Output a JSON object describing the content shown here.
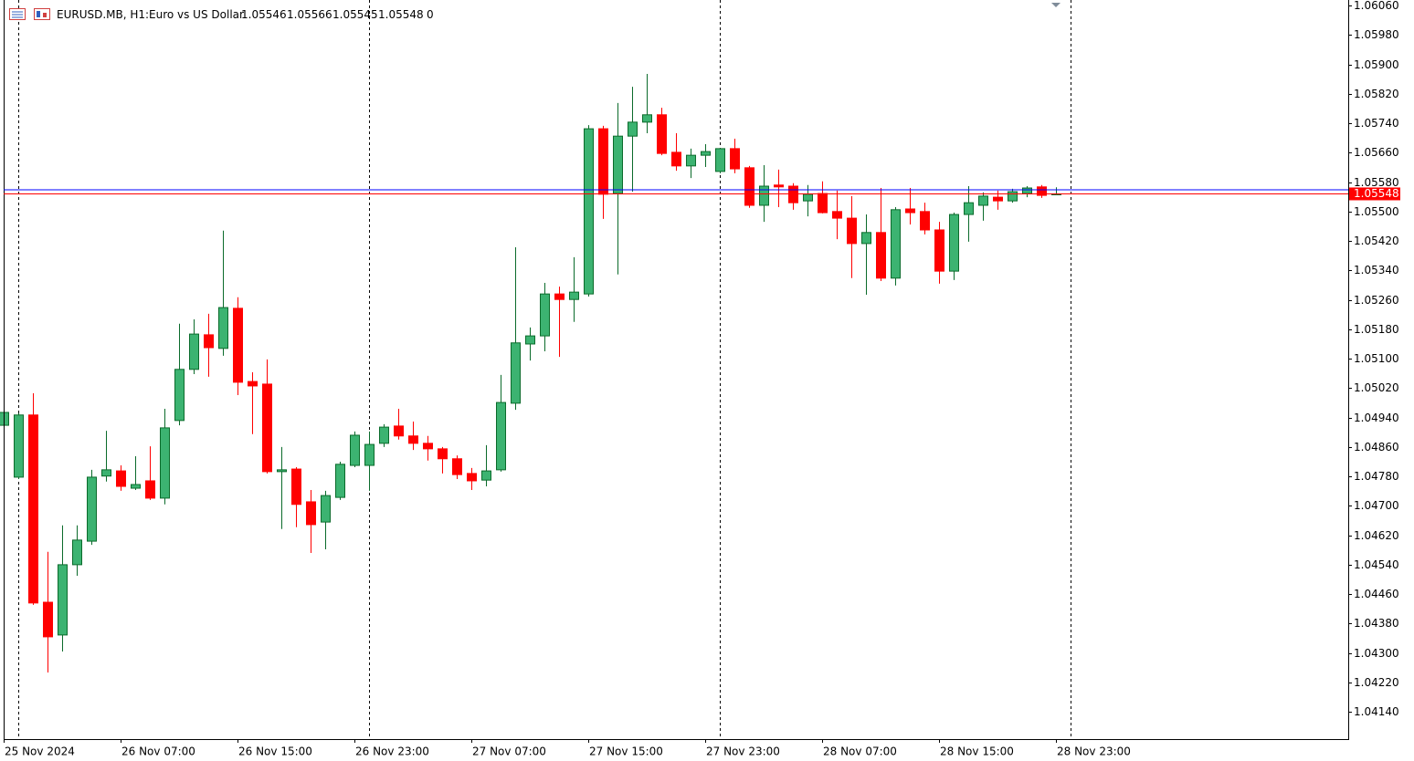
{
  "header": {
    "symbol": "EURUSD.MB, H1:",
    "description": "Euro vs US Dollar",
    "tail": 0
  },
  "chart_data": {
    "type": "candlestick",
    "categories": [
      "25 Nov 2024",
      null,
      null,
      null,
      null,
      null,
      null,
      null,
      "26 Nov 07:00",
      null,
      null,
      null,
      null,
      null,
      null,
      null,
      "26 Nov 15:00",
      null,
      null,
      null,
      null,
      null,
      null,
      null,
      "26 Nov 23:00",
      null,
      null,
      null,
      null,
      null,
      null,
      null,
      "27 Nov 07:00",
      null,
      null,
      null,
      null,
      null,
      null,
      null,
      "27 Nov 15:00",
      null,
      null,
      null,
      null,
      null,
      null,
      null,
      "27 Nov 23:00",
      null,
      null,
      null,
      null,
      null,
      null,
      null,
      "28 Nov 07:00",
      null,
      null,
      null,
      null,
      null,
      null,
      null,
      "28 Nov 15:00",
      null,
      null,
      null,
      null,
      null,
      null,
      null,
      "28 Nov 23:00"
    ],
    "open": [
      1.04919,
      1.04778,
      1.04947,
      1.04438,
      1.04349,
      1.0454,
      1.04604,
      1.04781,
      1.04795,
      1.04748,
      1.04768,
      1.04721,
      1.04932,
      1.05071,
      1.05165,
      1.05128,
      1.05237,
      1.05038,
      1.05031,
      1.04793,
      1.048,
      1.04711,
      1.04656,
      1.04723,
      1.0481,
      1.0481,
      1.0487,
      1.04917,
      1.0489,
      1.0487,
      1.04855,
      1.04828,
      1.04788,
      1.0477,
      1.04798,
      1.04979,
      1.0514,
      1.05162,
      1.05276,
      1.05261,
      1.05276,
      1.05725,
      1.05549,
      1.05705,
      1.05743,
      1.05763,
      1.05661,
      1.05624,
      1.05653,
      1.05609,
      1.05671,
      1.05619,
      1.05517,
      1.05572,
      1.05569,
      1.05529,
      1.05549,
      1.055,
      1.05482,
      1.05413,
      1.05443,
      1.05319,
      1.05507,
      1.055,
      1.0545,
      1.05338,
      1.05492,
      1.05517,
      1.05539,
      1.05529,
      1.05549,
      1.05567,
      1.05546
    ],
    "high": [
      1.04959,
      1.04952,
      1.05006,
      1.04575,
      1.04647,
      1.04647,
      1.04798,
      1.04904,
      1.0481,
      1.04835,
      1.04862,
      1.04964,
      1.05195,
      1.05207,
      1.05222,
      1.05448,
      1.05267,
      1.05063,
      1.05098,
      1.0486,
      1.04805,
      1.04743,
      1.04741,
      1.0482,
      1.04902,
      1.04902,
      1.04922,
      1.04964,
      1.04929,
      1.0489,
      1.0486,
      1.04837,
      1.04803,
      1.04865,
      1.05056,
      1.05403,
      1.05185,
      1.05306,
      1.05296,
      1.05376,
      1.05735,
      1.05733,
      1.05795,
      1.05839,
      1.05874,
      1.05782,
      1.05713,
      1.05671,
      1.05683,
      1.05673,
      1.05698,
      1.05624,
      1.05626,
      1.05614,
      1.05577,
      1.05572,
      1.05582,
      1.05557,
      1.05542,
      1.05492,
      1.05564,
      1.05512,
      1.05564,
      1.05524,
      1.05472,
      1.05497,
      1.05569,
      1.05552,
      1.05557,
      1.05562,
      1.05569,
      1.05572,
      1.05566
    ],
    "low": [
      1.04914,
      1.04773,
      1.04431,
      1.04247,
      1.04304,
      1.0451,
      1.04594,
      1.04766,
      1.04741,
      1.04743,
      1.04716,
      1.04704,
      1.04919,
      1.05058,
      1.05051,
      1.05108,
      1.05001,
      1.04895,
      1.04788,
      1.04637,
      1.04642,
      1.04572,
      1.04582,
      1.04716,
      1.04805,
      1.04741,
      1.0486,
      1.0488,
      1.04852,
      1.04823,
      1.04788,
      1.04773,
      1.04743,
      1.04753,
      1.04793,
      1.04961,
      1.05095,
      1.0512,
      1.05105,
      1.052,
      1.05269,
      1.0548,
      1.05329,
      1.05554,
      1.05713,
      1.05653,
      1.05611,
      1.05591,
      1.05621,
      1.05604,
      1.05604,
      1.0551,
      1.05472,
      1.05512,
      1.05505,
      1.05487,
      1.05495,
      1.05425,
      1.05319,
      1.05274,
      1.05311,
      1.05299,
      1.05465,
      1.05438,
      1.05304,
      1.05314,
      1.05418,
      1.05475,
      1.05505,
      1.05524,
      1.05539,
      1.05537,
      1.05545
    ],
    "close": [
      1.04954,
      1.04947,
      1.04436,
      1.04344,
      1.0454,
      1.04607,
      1.04778,
      1.04798,
      1.04753,
      1.04758,
      1.04721,
      1.04912,
      1.05071,
      1.05167,
      1.0513,
      1.05239,
      1.05036,
      1.05026,
      1.04793,
      1.04798,
      1.04704,
      1.04649,
      1.04728,
      1.04813,
      1.04892,
      1.04867,
      1.04914,
      1.0489,
      1.0487,
      1.04855,
      1.04828,
      1.04785,
      1.04768,
      1.04795,
      1.04981,
      1.05143,
      1.05162,
      1.05276,
      1.05261,
      1.05281,
      1.05725,
      1.05547,
      1.05705,
      1.05743,
      1.05763,
      1.05658,
      1.05624,
      1.05653,
      1.05663,
      1.05671,
      1.05616,
      1.05517,
      1.05569,
      1.05567,
      1.05524,
      1.05547,
      1.05497,
      1.05482,
      1.05413,
      1.05443,
      1.05319,
      1.05505,
      1.05497,
      1.0545,
      1.05338,
      1.05492,
      1.05524,
      1.05542,
      1.05529,
      1.05554,
      1.05564,
      1.05544,
      1.05548
    ],
    "up_color": "#3cb371",
    "up_edge": "#0b6b2b",
    "down_color": "#ff0000",
    "bid_line": 1.05548,
    "bid_color": "#ff0000",
    "ask_line": 1.05559,
    "ask_color": "#0000ff",
    "ylim": [
      1.04066,
      1.06075
    ],
    "yticks": [
      {
        "value": 1.0606,
        "label": "1.06060"
      },
      {
        "value": 1.0598,
        "label": "1.05980"
      },
      {
        "value": 1.059,
        "label": "1.05900"
      },
      {
        "value": 1.0582,
        "label": "1.05820"
      },
      {
        "value": 1.0574,
        "label": "1.05740"
      },
      {
        "value": 1.0566,
        "label": "1.05660"
      },
      {
        "value": 1.0558,
        "label": "1.05580"
      },
      {
        "value": 1.055,
        "label": "1.05500"
      },
      {
        "value": 1.0542,
        "label": "1.05420"
      },
      {
        "value": 1.0534,
        "label": "1.05340"
      },
      {
        "value": 1.0526,
        "label": "1.05260"
      },
      {
        "value": 1.0518,
        "label": "1.05180"
      },
      {
        "value": 1.051,
        "label": "1.05100"
      },
      {
        "value": 1.0502,
        "label": "1.05020"
      },
      {
        "value": 1.0494,
        "label": "1.04940"
      },
      {
        "value": 1.0486,
        "label": "1.04860"
      },
      {
        "value": 1.0478,
        "label": "1.04780"
      },
      {
        "value": 1.047,
        "label": "1.04700"
      },
      {
        "value": 1.0462,
        "label": "1.04620"
      },
      {
        "value": 1.0454,
        "label": "1.04540"
      },
      {
        "value": 1.0446,
        "label": "1.04460"
      },
      {
        "value": 1.0438,
        "label": "1.04380"
      },
      {
        "value": 1.043,
        "label": "1.04300"
      },
      {
        "value": 1.0422,
        "label": "1.04220"
      },
      {
        "value": 1.0414,
        "label": "1.04140"
      }
    ],
    "grid": false
  }
}
